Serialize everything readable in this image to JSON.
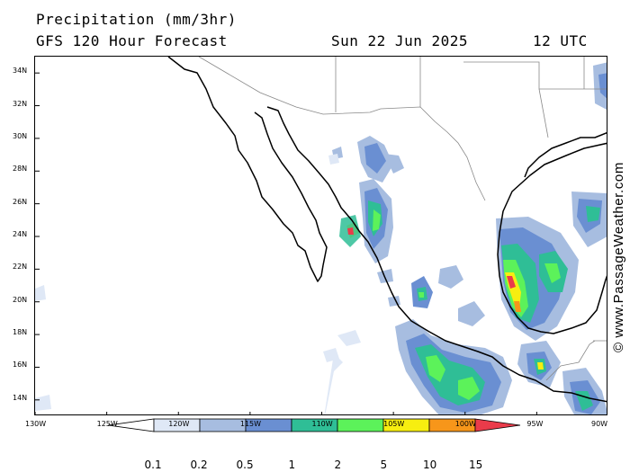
{
  "header": {
    "title": "Precipitation (mm/3hr)",
    "subtitle": "GFS 120 Hour Forecast",
    "date": "Sun 22 Jun 2025",
    "time": "12 UTC"
  },
  "credit": "© www.PassageWeather.com",
  "map": {
    "lon_range": [
      -130,
      -90
    ],
    "lat_range": [
      13,
      35
    ],
    "lat_ticks": [
      "34N",
      "32N",
      "30N",
      "28N",
      "26N",
      "24N",
      "22N",
      "20N",
      "18N",
      "16N",
      "14N"
    ],
    "lon_ticks": [
      "130W",
      "125W",
      "120W",
      "115W",
      "110W",
      "105W",
      "100W",
      "95W",
      "90W"
    ],
    "colors": {
      "land_outline": "#000000",
      "border": "#888888",
      "frame": "#000000",
      "background": "#ffffff"
    }
  },
  "legend": {
    "labels": [
      "0.1",
      "0.2",
      "0.5",
      "1",
      "2",
      "5",
      "10",
      "15"
    ],
    "colors": [
      "#ffffff",
      "#dfe8f6",
      "#a7bde0",
      "#6a8fd2",
      "#2fbe96",
      "#5cf25a",
      "#f7ee10",
      "#f7961a",
      "#ea3b4a"
    ]
  }
}
